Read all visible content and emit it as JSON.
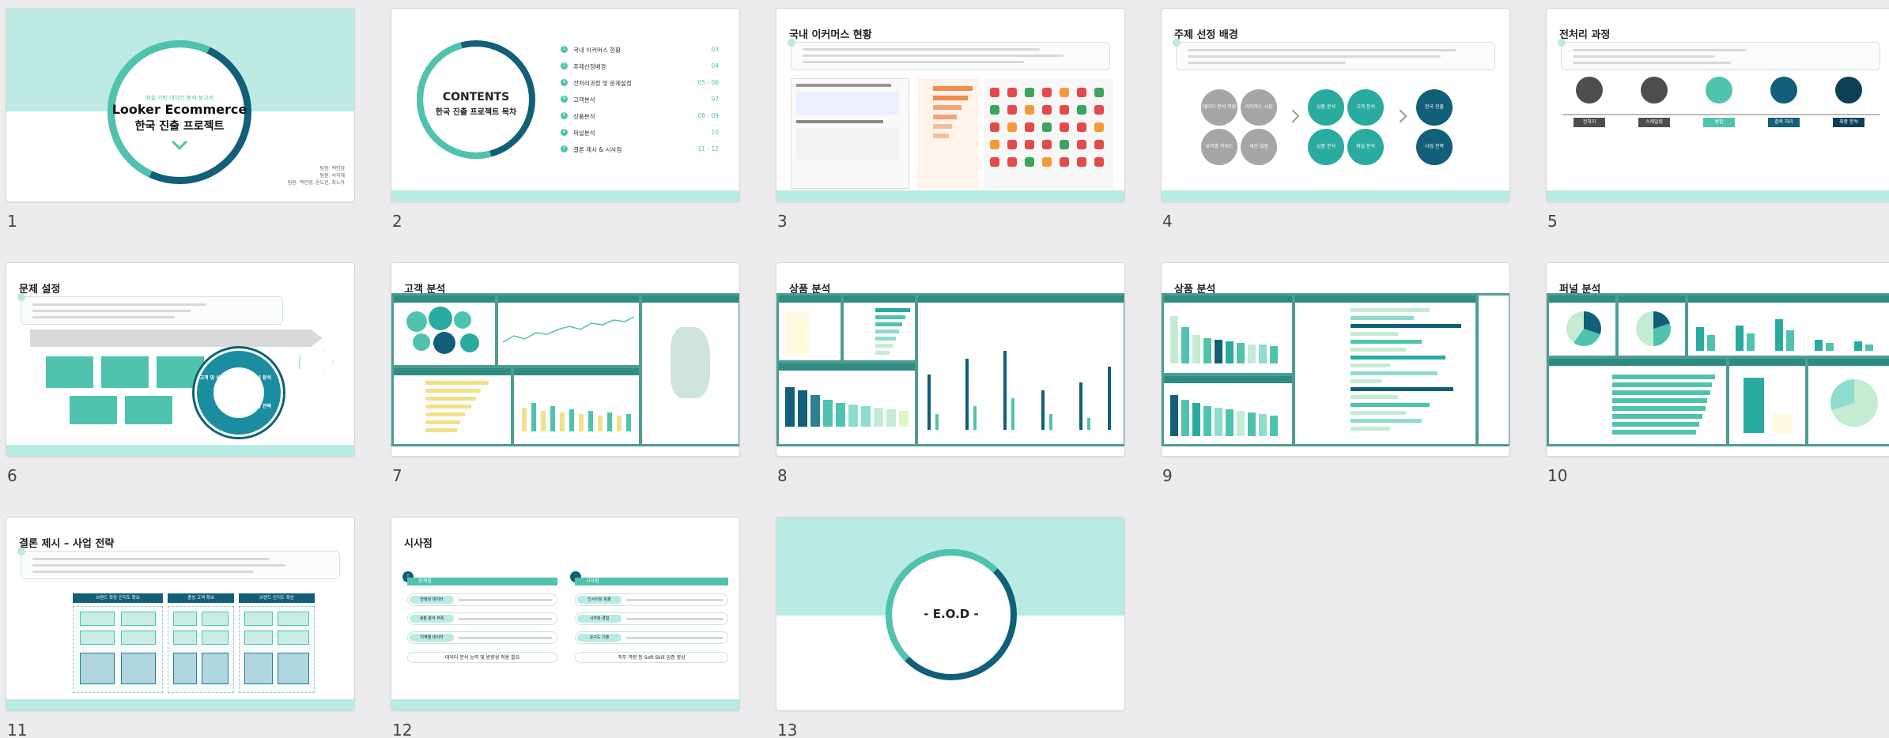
{
  "slides": [
    {
      "number": "1",
      "subtitle": "애실 기반 데이터 분석 보고서",
      "title_line1": "Looker Ecommerce",
      "title_line2": "한국 진출 프로젝트",
      "authors": [
        "팀장: 백민영",
        "팀원: 서지혜",
        "팀원: 백민영, 윤도진, 최노아"
      ]
    },
    {
      "number": "2",
      "contents_title": "CONTENTS",
      "contents_subtitle": "한국 진출 프로젝트 목차",
      "toc": [
        {
          "n": "1",
          "label": "국내 이커머스 현황",
          "pages": "03"
        },
        {
          "n": "2",
          "label": "주제선정배경",
          "pages": "04"
        },
        {
          "n": "3",
          "label": "전처리과정 및 문제설정",
          "pages": "05 - 06"
        },
        {
          "n": "4",
          "label": "고객분석",
          "pages": "07"
        },
        {
          "n": "5",
          "label": "상품분석",
          "pages": "08 - 09"
        },
        {
          "n": "6",
          "label": "퍼널분석",
          "pages": "10"
        },
        {
          "n": "7",
          "label": "결론 제시 & 시사점",
          "pages": "11 - 12"
        }
      ]
    },
    {
      "number": "3",
      "title": "국내 이커머스 현황"
    },
    {
      "number": "4",
      "title": "주제 선정 배경",
      "circles": [
        "데이터 분석 역량",
        "이커머스 시장",
        "상품 분석",
        "고객 분석",
        "퍼널 분석",
        "한국 진출",
        "사업 전략"
      ]
    },
    {
      "number": "5",
      "title": "전처리 과정",
      "steps": [
        "전처리",
        "스케일링",
        "병합",
        "결측 처리",
        "최종 분석"
      ]
    },
    {
      "number": "6",
      "title": "문제 설정",
      "wheel": [
        "고객 및 상품 분석",
        "퍼널 분석",
        "사업 전략",
        "성장 제시"
      ]
    },
    {
      "number": "7",
      "title": "고객 분석"
    },
    {
      "number": "8",
      "title": "상품 분석"
    },
    {
      "number": "9",
      "title": "상품 분석"
    },
    {
      "number": "10",
      "title": "퍼널 분석"
    },
    {
      "number": "11",
      "title": "결론 제시 – 사업 전략",
      "columns": [
        "브랜드 확장 인지도 확보",
        "충성 고객 확보",
        "브랜드 인지도 확산"
      ]
    },
    {
      "number": "12",
      "title": "시사점",
      "left_header": "한계점",
      "right_header": "시사점",
      "left_items": [
        "한정된 데이터",
        "세분 분석 부족",
        "지역별 데이터"
      ],
      "right_items": [
        "인사이트 축출",
        "시각화 경험",
        "요구도 기출"
      ],
      "left_footer": "데이터 분석 능력 및 방향성 적용 필요",
      "right_footer": "직무 역량 등 Soft Skill 입증 향상"
    },
    {
      "number": "13",
      "title": "- E.O.D -"
    }
  ],
  "colors": {
    "teal_light": "#b8ebe4",
    "teal": "#4fc3ad",
    "teal_dark": "#115f78",
    "gray": "#a6a6a6"
  }
}
